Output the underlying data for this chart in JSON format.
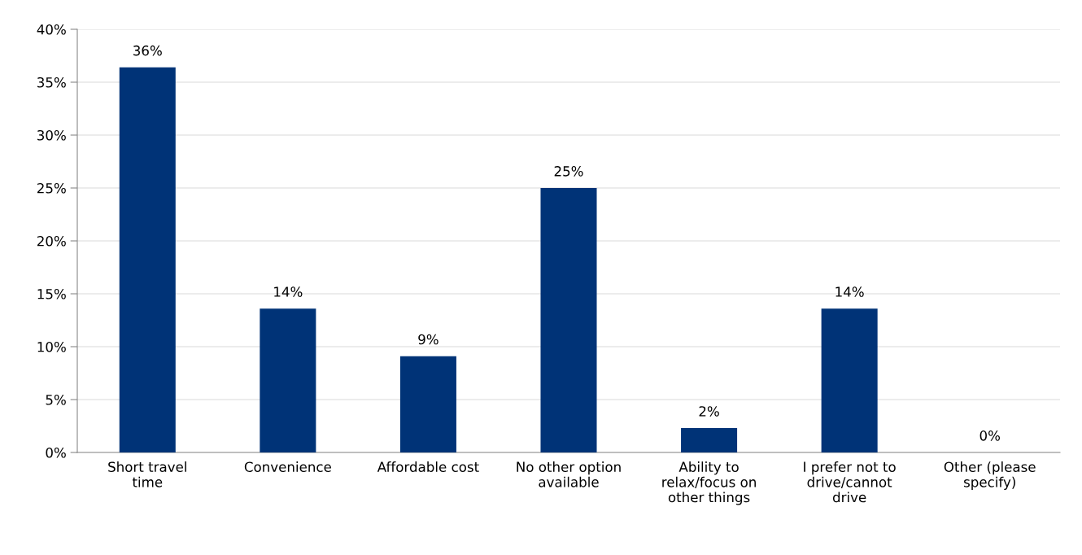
{
  "chart_data": {
    "type": "bar",
    "categories": [
      "Short travel time",
      "Convenience",
      "Affordable cost",
      "No other option available",
      "Ability to relax/focus on other things",
      "I prefer not to drive/cannot drive",
      "Other (please specify)"
    ],
    "values": [
      36.4,
      13.6,
      9.1,
      25.0,
      2.3,
      13.6,
      0
    ],
    "value_labels": [
      "36%",
      "14%",
      "9%",
      "25%",
      "2%",
      "14%",
      "0%"
    ],
    "color": "#003377",
    "ylim": [
      0,
      40
    ],
    "yticks": [
      {
        "value": 0,
        "label": "0%"
      },
      {
        "value": 5,
        "label": "5%"
      },
      {
        "value": 10,
        "label": "10%"
      },
      {
        "value": 15,
        "label": "15%"
      },
      {
        "value": 20,
        "label": "20%"
      },
      {
        "value": 25,
        "label": "25%"
      },
      {
        "value": 30,
        "label": "30%"
      },
      {
        "value": 35,
        "label": "35%"
      },
      {
        "value": 40,
        "label": "40%"
      }
    ],
    "grid": "y",
    "legend": false
  }
}
